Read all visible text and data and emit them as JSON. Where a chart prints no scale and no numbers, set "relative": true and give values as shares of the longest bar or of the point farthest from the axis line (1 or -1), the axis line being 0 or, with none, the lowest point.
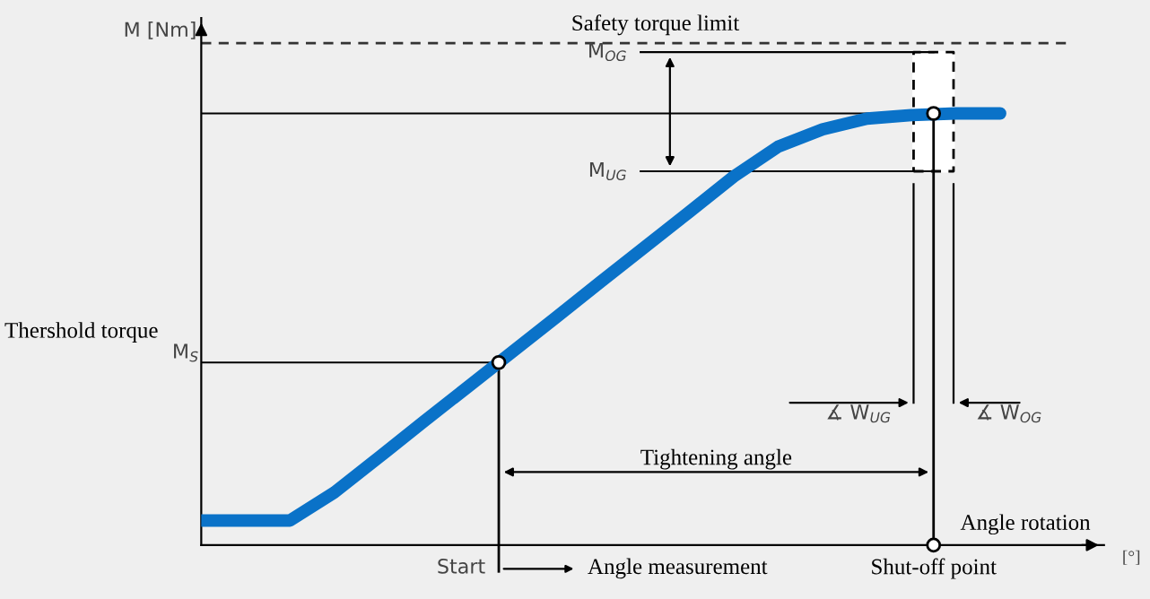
{
  "chart_data": {
    "type": "line",
    "relative": true,
    "ylabel": "M [Nm]",
    "xlabel": "Angle rotation",
    "marker": "none",
    "line_style": "solid",
    "categories": [
      null,
      null,
      null,
      null,
      null,
      null,
      null,
      null,
      null,
      null,
      null,
      null,
      null,
      null,
      null,
      null,
      null,
      null,
      null
    ],
    "series": [
      {
        "color": "#0a72c8",
        "values": [
          0.057,
          0.057,
          0.057,
          0.122,
          0.203,
          0.285,
          0.366,
          0.447,
          0.528,
          0.61,
          0.691,
          0.772,
          0.854,
          0.923,
          0.963,
          0.988,
          0.996,
          1,
          1
        ]
      }
    ],
    "ref_lines": [
      {
        "axis": "y",
        "value": 1.163,
        "label": "Safety torque limit",
        "line_style": "dashed",
        "color": "#333333"
      },
      {
        "axis": "y",
        "value": 1.142,
        "label": "M$_{OG}$",
        "color": "#000000"
      },
      {
        "axis": "y",
        "value": 1.0,
        "label": null,
        "color": "#000000"
      },
      {
        "axis": "y",
        "value": 0.866,
        "label": "M$_{UG}$",
        "color": "#000000"
      },
      {
        "axis": "y",
        "value": 0.423,
        "label": "M$_{S}$",
        "color": "#000000"
      }
    ],
    "annotations": [
      "Thershold torque",
      "Tightening angle",
      "Angle measurement",
      "[°]",
      "Start",
      "Shut-off point",
      "∡ W$_{UG}$",
      "∡ W$_{OG}$"
    ]
  }
}
